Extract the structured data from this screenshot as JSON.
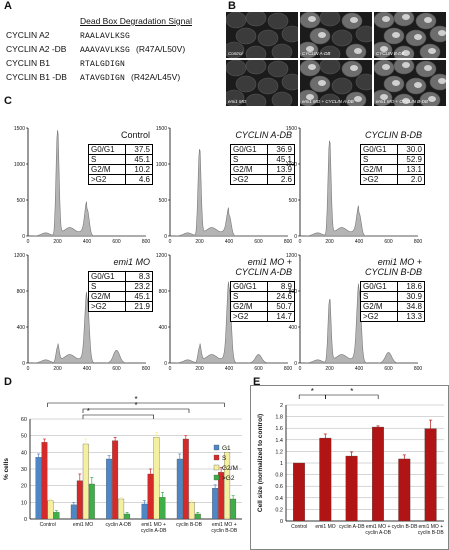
{
  "panel_labels": {
    "a": "A",
    "b": "B",
    "c": "C",
    "d": "D",
    "e": "E"
  },
  "panel_a": {
    "header": "Dead Box Degradation Signal",
    "rows": [
      {
        "name": "CYCLIN A2",
        "seq": "RAALAVLKSG",
        "mut": ""
      },
      {
        "name": "CYCLIN A2 -DB",
        "seq": "AAAVAVLKSG",
        "mut": "(R47A/L50V)"
      },
      {
        "name": "CYCLIN B1",
        "seq": "RTALGDIGN",
        "mut": ""
      },
      {
        "name": "CYCLIN B1 -DB",
        "seq": "ATAVGDIGN",
        "mut": "(R42A/L45V)"
      }
    ]
  },
  "panel_b": {
    "images": [
      {
        "caption": "Control",
        "fluor": 0
      },
      {
        "caption": "CYCLIN A-DB",
        "fluor": 1
      },
      {
        "caption": "CYCLIN B-DB",
        "fluor": 2
      },
      {
        "caption": "emi1 MO",
        "fluor": 0
      },
      {
        "caption": "emi1 MO + CYCLIN A-DB",
        "fluor": 1
      },
      {
        "caption": "emi1 MO + CYCLIN B-DB",
        "fluor": 2
      }
    ]
  },
  "panel_c": {
    "x_ticks": [
      "0",
      "200",
      "400",
      "600",
      "800"
    ],
    "histograms": [
      {
        "title": [
          "Control"
        ],
        "italic": false,
        "ymax": 1500,
        "y_ticks": [
          "0",
          "500",
          "1000",
          "1500"
        ],
        "stats": [
          [
            "G0/G1",
            "37.5"
          ],
          [
            "S",
            "45.1"
          ],
          [
            "G2/M",
            "10.2"
          ],
          [
            ">G2",
            "4.6"
          ]
        ],
        "peaks": [
          1.0,
          0.26,
          0.0
        ]
      },
      {
        "title": [
          "CYCLIN A-DB"
        ],
        "italic": true,
        "ymax": 1500,
        "y_ticks": [
          "0",
          "500",
          "1000",
          "1500"
        ],
        "stats": [
          [
            "G0/G1",
            "36.9"
          ],
          [
            "S",
            "45.1"
          ],
          [
            "G2/M",
            "13.9"
          ],
          [
            ">G2",
            "2.6"
          ]
        ],
        "peaks": [
          0.82,
          0.2,
          0.0
        ]
      },
      {
        "title": [
          "CYCLIN B-DB"
        ],
        "italic": true,
        "ymax": 1500,
        "y_ticks": [
          "0",
          "500",
          "1000",
          "1500"
        ],
        "stats": [
          [
            "G0/G1",
            "30.0"
          ],
          [
            "S",
            "52.9"
          ],
          [
            "G2/M",
            "13.1"
          ],
          [
            ">G2",
            "2.0"
          ]
        ],
        "peaks": [
          0.9,
          0.22,
          0.0
        ]
      },
      {
        "title": [
          "emi1 MO"
        ],
        "italic": true,
        "ymax": 1200,
        "y_ticks": [
          "0",
          "400",
          "800",
          "1200"
        ],
        "stats": [
          [
            "G0/G1",
            "8.3"
          ],
          [
            "S",
            "23.2"
          ],
          [
            "G2/M",
            "45.1"
          ],
          [
            ">G2",
            "21.9"
          ]
        ],
        "peaks": [
          0.15,
          0.62,
          0.12
        ]
      },
      {
        "title": [
          "emi1 MO +",
          "CYCLIN A-DB"
        ],
        "italic": true,
        "ymax": 1200,
        "y_ticks": [
          "0",
          "400",
          "800",
          "1200"
        ],
        "stats": [
          [
            "G0/G1",
            "8.9"
          ],
          [
            "S",
            "24.6"
          ],
          [
            "G2/M",
            "50.7"
          ],
          [
            ">G2",
            "14.7"
          ]
        ],
        "peaks": [
          0.15,
          0.72,
          0.08
        ]
      },
      {
        "title": [
          "emi1 MO +",
          "CYCLIN B-DB"
        ],
        "italic": true,
        "ymax": 1200,
        "y_ticks": [
          "0",
          "400",
          "800",
          "1200"
        ],
        "stats": [
          [
            "G0/G1",
            "18.6"
          ],
          [
            "S",
            "30.9"
          ],
          [
            "G2/M",
            "34.8"
          ],
          [
            ">G2",
            "13.3"
          ]
        ],
        "peaks": [
          0.6,
          0.7,
          0.1
        ]
      }
    ]
  },
  "chart_data": [
    {
      "type": "bar",
      "ylabel": "% cells",
      "ylim": [
        0,
        60
      ],
      "y_ticks": [
        0,
        10,
        20,
        30,
        40,
        50,
        60
      ],
      "categories": [
        "Control",
        "emi1 MO",
        "cyclin A-DB",
        "emi1 MO + cyclin A-DB",
        "cyclin B-DB",
        "emi1 MO + cyclin B-DB"
      ],
      "series": [
        {
          "name": "G1",
          "color": "#4f86c6",
          "values": [
            37,
            8.5,
            36,
            9,
            36,
            18.5
          ],
          "errors": [
            2,
            1.5,
            2,
            2,
            3,
            2
          ]
        },
        {
          "name": "S",
          "color": "#d42a2a",
          "values": [
            46,
            23,
            47,
            27,
            48,
            28
          ],
          "errors": [
            2,
            4,
            2,
            3,
            2,
            3
          ]
        },
        {
          "name": "G2/M",
          "color": "#f5f0a0",
          "values": [
            11,
            45,
            12,
            49,
            10,
            40
          ],
          "errors": [
            1,
            3,
            1,
            3,
            1,
            3
          ]
        },
        {
          "name": ">G2",
          "color": "#3fae49",
          "values": [
            4,
            21,
            3,
            13,
            3,
            12
          ],
          "errors": [
            1,
            4,
            1,
            3,
            1,
            2
          ]
        }
      ],
      "significance": [
        {
          "from": 0,
          "to": 5,
          "label": "*"
        },
        {
          "from": 1,
          "to": 4,
          "label": "*"
        },
        {
          "from": 1,
          "to": 3,
          "label": "*"
        }
      ],
      "legend_position": "right"
    },
    {
      "type": "bar",
      "ylabel": "Cell size (normalized to control)",
      "ylim": [
        0,
        2
      ],
      "y_ticks": [
        0,
        0.2,
        0.4,
        0.6,
        0.8,
        1,
        1.2,
        1.4,
        1.6,
        1.8,
        2
      ],
      "categories": [
        "Control",
        "emi1 MO",
        "cyclin A-DB",
        "emi1 MO + cyclin A-DB",
        "cyclin B-DB",
        "emi1 MO + cyclin B-DB"
      ],
      "series": [
        {
          "color": "#b01414",
          "values": [
            1.0,
            1.43,
            1.12,
            1.62,
            1.07,
            1.59
          ],
          "errors": [
            0,
            0.07,
            0.07,
            0.02,
            0.07,
            0.15
          ]
        }
      ],
      "significance": [
        {
          "from": 0,
          "to": 1,
          "label": "*"
        },
        {
          "from": 1,
          "to": 3,
          "label": "*"
        }
      ]
    }
  ]
}
